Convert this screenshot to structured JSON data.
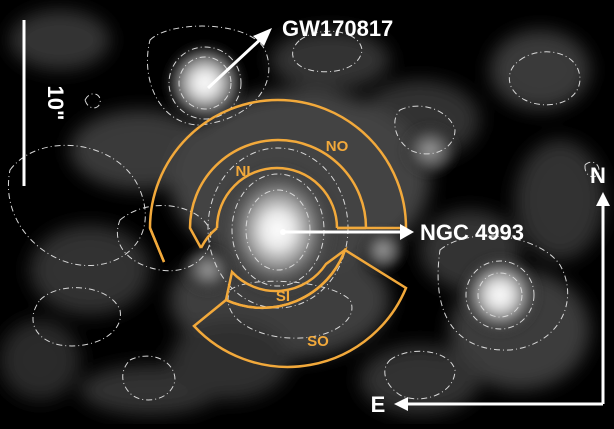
{
  "image": {
    "scale_label": "10\"",
    "labels": {
      "transient": "GW170817",
      "galaxy": "NGC 4993",
      "north": "N",
      "east": "E"
    },
    "regions": [
      {
        "id": "NO",
        "label": "NO"
      },
      {
        "id": "NI",
        "label": "NI"
      },
      {
        "id": "SI",
        "label": "SI"
      },
      {
        "id": "SO",
        "label": "SO"
      }
    ],
    "colors": {
      "background": "#000000",
      "arc_regions": "#f2a93b",
      "annotation": "#ffffff",
      "contours": "#d8d8d8"
    }
  }
}
